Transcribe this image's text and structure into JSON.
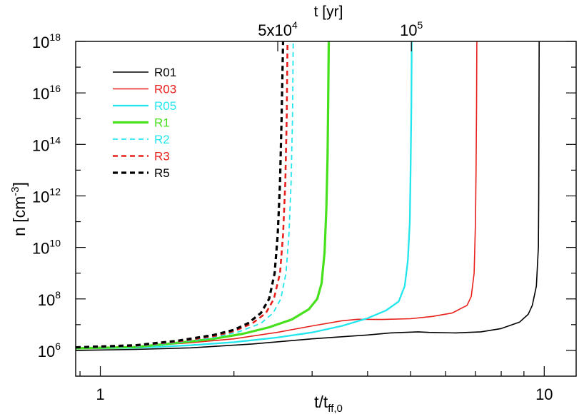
{
  "chart_data": {
    "type": "line",
    "xlabel_main": "t/t",
    "xlabel_sub": "ff,0",
    "ylabel_main": "n [cm",
    "ylabel_sup": "-3",
    "ylabel_end": "]",
    "top_axis_title": "t [yr]",
    "top_ticks": [
      {
        "x": 2.51,
        "base": "5x10",
        "sup": "4"
      },
      {
        "x": 5.02,
        "base": "10",
        "sup": "5"
      }
    ],
    "x_scale": "log",
    "y_scale": "log",
    "xlim": [
      0.88,
      11.8
    ],
    "ylim": [
      100000,
      1000000000000000000
    ],
    "x_tick_labels": [
      {
        "x": 1,
        "label": "1"
      },
      {
        "x": 10,
        "label": "10"
      }
    ],
    "y_tick_labels": [
      {
        "exp": 6,
        "base": "10",
        "sup": "6"
      },
      {
        "exp": 8,
        "base": "10",
        "sup": "8"
      },
      {
        "exp": 10,
        "base": "10",
        "sup": "10"
      },
      {
        "exp": 12,
        "base": "10",
        "sup": "12"
      },
      {
        "exp": 14,
        "base": "10",
        "sup": "14"
      },
      {
        "exp": 16,
        "base": "10",
        "sup": "16"
      },
      {
        "exp": 18,
        "base": "10",
        "sup": "18"
      }
    ],
    "series": [
      {
        "name": "R01",
        "color": "#000000",
        "dash": "solid",
        "width": 1.6,
        "points": [
          [
            0.88,
            6.0
          ],
          [
            1.2,
            6.04
          ],
          [
            1.6,
            6.1
          ],
          [
            2.2,
            6.25
          ],
          [
            3.0,
            6.45
          ],
          [
            4.0,
            6.6
          ],
          [
            4.5,
            6.68
          ],
          [
            5.2,
            6.72
          ],
          [
            5.5,
            6.7
          ],
          [
            6.3,
            6.68
          ],
          [
            7.2,
            6.72
          ],
          [
            8.0,
            6.85
          ],
          [
            8.8,
            7.1
          ],
          [
            9.2,
            7.4
          ],
          [
            9.4,
            7.75
          ],
          [
            9.6,
            8.5
          ],
          [
            9.7,
            10.0
          ],
          [
            9.72,
            12.0
          ],
          [
            9.73,
            15.0
          ],
          [
            9.74,
            18.0
          ]
        ]
      },
      {
        "name": "R03",
        "color": "#e8201c",
        "dash": "solid",
        "width": 1.6,
        "points": [
          [
            0.88,
            6.1
          ],
          [
            1.2,
            6.15
          ],
          [
            1.6,
            6.3
          ],
          [
            2.0,
            6.45
          ],
          [
            2.5,
            6.7
          ],
          [
            3.0,
            6.95
          ],
          [
            3.5,
            7.15
          ],
          [
            3.8,
            7.21
          ],
          [
            4.3,
            7.2
          ],
          [
            5.0,
            7.23
          ],
          [
            5.6,
            7.32
          ],
          [
            6.2,
            7.45
          ],
          [
            6.7,
            7.75
          ],
          [
            6.85,
            8.1
          ],
          [
            6.95,
            9.0
          ],
          [
            7.0,
            11.0
          ],
          [
            7.02,
            13.0
          ],
          [
            7.04,
            15.5
          ],
          [
            7.05,
            18.0
          ]
        ]
      },
      {
        "name": "R05",
        "color": "#22e6ee",
        "dash": "solid",
        "width": 2.3,
        "points": [
          [
            0.88,
            6.08
          ],
          [
            1.2,
            6.1
          ],
          [
            1.6,
            6.2
          ],
          [
            2.0,
            6.32
          ],
          [
            2.5,
            6.5
          ],
          [
            3.0,
            6.7
          ],
          [
            3.5,
            6.95
          ],
          [
            4.0,
            7.25
          ],
          [
            4.4,
            7.55
          ],
          [
            4.7,
            7.9
          ],
          [
            4.85,
            8.5
          ],
          [
            4.93,
            9.5
          ],
          [
            4.98,
            11.0
          ],
          [
            5.0,
            13.0
          ],
          [
            5.02,
            15.5
          ],
          [
            5.03,
            18.0
          ]
        ]
      },
      {
        "name": "R1",
        "color": "#46e01c",
        "dash": "solid",
        "width": 3.2,
        "points": [
          [
            0.88,
            6.08
          ],
          [
            1.2,
            6.13
          ],
          [
            1.5,
            6.3
          ],
          [
            1.8,
            6.45
          ],
          [
            2.1,
            6.65
          ],
          [
            2.4,
            6.9
          ],
          [
            2.7,
            7.2
          ],
          [
            2.95,
            7.6
          ],
          [
            3.08,
            8.0
          ],
          [
            3.15,
            8.6
          ],
          [
            3.2,
            9.8
          ],
          [
            3.23,
            11.5
          ],
          [
            3.25,
            13.5
          ],
          [
            3.26,
            15.5
          ],
          [
            3.27,
            18.0
          ]
        ]
      },
      {
        "name": "R2",
        "color": "#22e6ee",
        "dash": "dash",
        "width": 1.8,
        "points": [
          [
            0.88,
            6.1
          ],
          [
            1.2,
            6.15
          ],
          [
            1.5,
            6.32
          ],
          [
            1.8,
            6.5
          ],
          [
            2.05,
            6.72
          ],
          [
            2.3,
            7.05
          ],
          [
            2.45,
            7.45
          ],
          [
            2.55,
            8.0
          ],
          [
            2.62,
            9.0
          ],
          [
            2.66,
            10.5
          ],
          [
            2.69,
            12.5
          ],
          [
            2.71,
            15.0
          ],
          [
            2.72,
            18.0
          ]
        ]
      },
      {
        "name": "R3",
        "color": "#e8201c",
        "dash": "dash",
        "width": 2.6,
        "points": [
          [
            0.88,
            6.12
          ],
          [
            1.2,
            6.18
          ],
          [
            1.5,
            6.35
          ],
          [
            1.8,
            6.55
          ],
          [
            2.0,
            6.75
          ],
          [
            2.2,
            7.05
          ],
          [
            2.36,
            7.45
          ],
          [
            2.46,
            8.0
          ],
          [
            2.54,
            9.0
          ],
          [
            2.58,
            10.5
          ],
          [
            2.61,
            12.5
          ],
          [
            2.63,
            15.0
          ],
          [
            2.64,
            18.0
          ]
        ]
      },
      {
        "name": "R5",
        "color": "#000000",
        "dash": "dash",
        "width": 3.2,
        "points": [
          [
            0.88,
            6.12
          ],
          [
            1.2,
            6.2
          ],
          [
            1.5,
            6.38
          ],
          [
            1.8,
            6.6
          ],
          [
            2.0,
            6.8
          ],
          [
            2.15,
            7.05
          ],
          [
            2.3,
            7.45
          ],
          [
            2.4,
            8.0
          ],
          [
            2.47,
            9.0
          ],
          [
            2.51,
            10.5
          ],
          [
            2.54,
            12.5
          ],
          [
            2.56,
            15.0
          ],
          [
            2.58,
            18.0
          ]
        ]
      }
    ],
    "legend_position": "top-left"
  }
}
